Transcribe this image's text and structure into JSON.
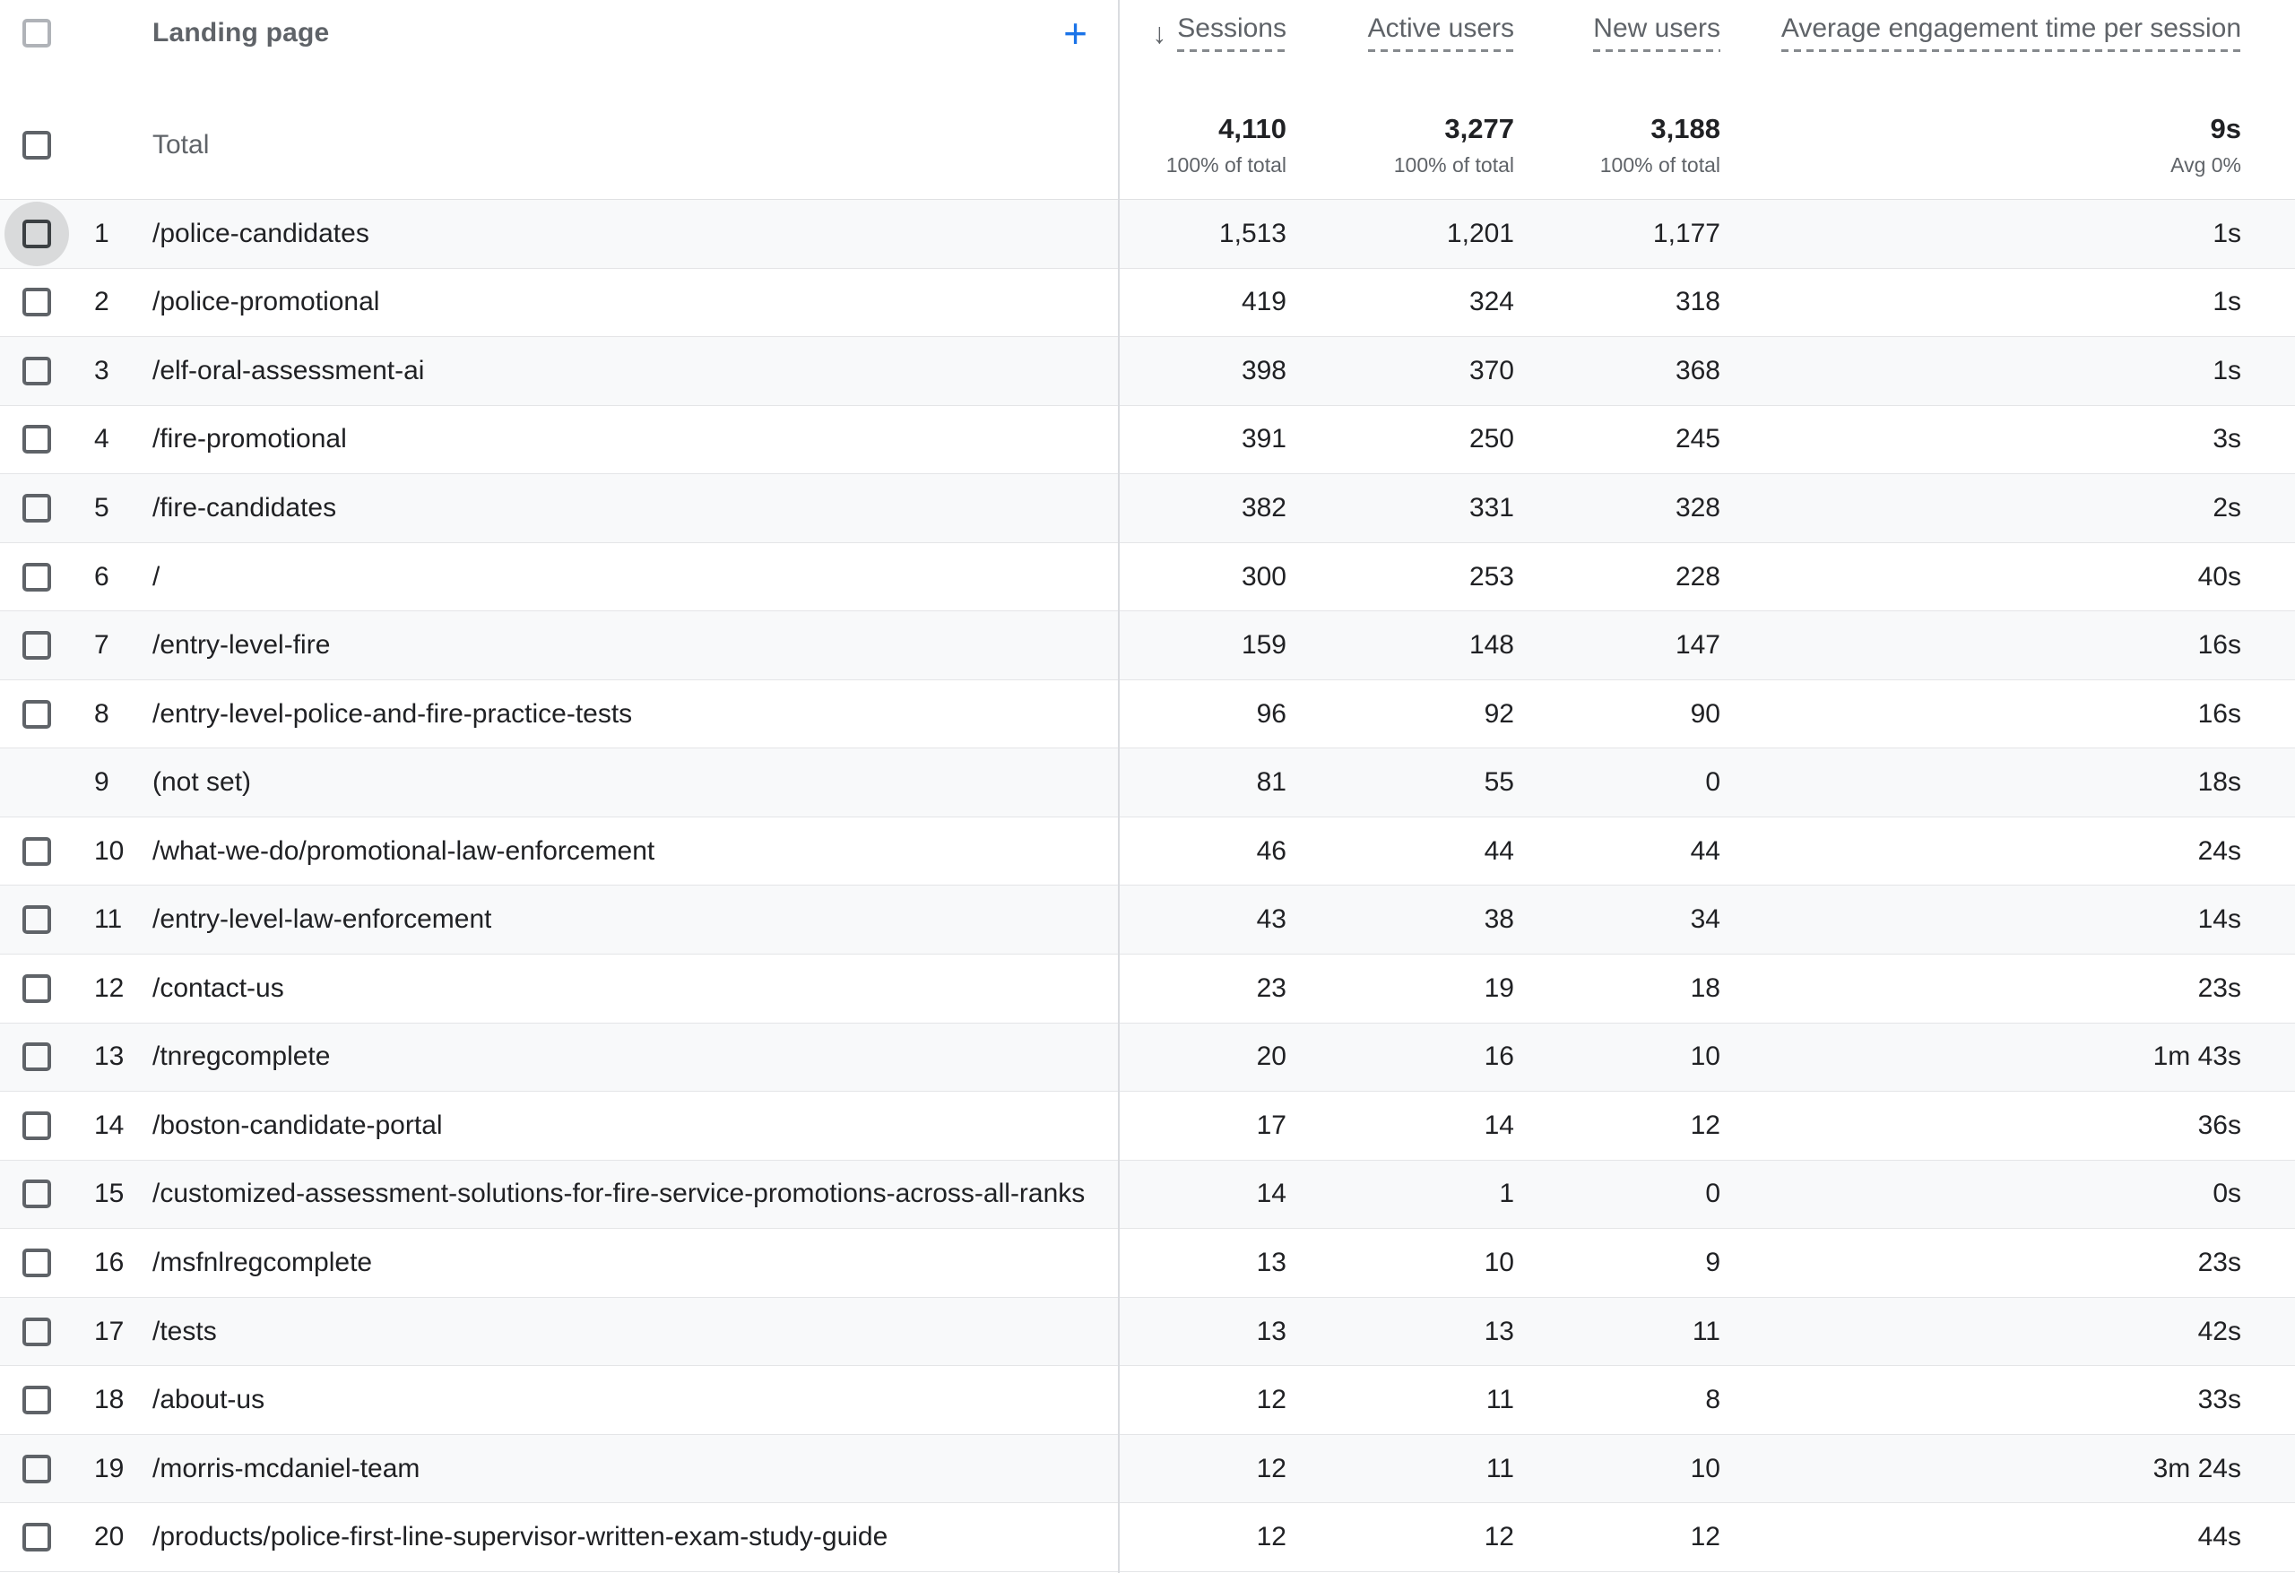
{
  "header": {
    "dimension_label": "Landing page",
    "add_icon": "+",
    "sort_icon": "↓",
    "metrics": [
      "Sessions",
      "Active users",
      "New users",
      "Average engagement time per session"
    ]
  },
  "totals": {
    "label": "Total",
    "sessions": {
      "value": "4,110",
      "sub": "100% of total"
    },
    "active_users": {
      "value": "3,277",
      "sub": "100% of total"
    },
    "new_users": {
      "value": "3,188",
      "sub": "100% of total"
    },
    "avg_engagement": {
      "value": "9s",
      "sub": "Avg 0%"
    }
  },
  "rows": [
    {
      "rank": "1",
      "page": "/police-candidates",
      "sessions": "1,513",
      "active_users": "1,201",
      "new_users": "1,177",
      "avg_engagement": "1s",
      "has_checkbox": true,
      "highlighted": true
    },
    {
      "rank": "2",
      "page": "/police-promotional",
      "sessions": "419",
      "active_users": "324",
      "new_users": "318",
      "avg_engagement": "1s",
      "has_checkbox": true,
      "highlighted": false
    },
    {
      "rank": "3",
      "page": "/elf-oral-assessment-ai",
      "sessions": "398",
      "active_users": "370",
      "new_users": "368",
      "avg_engagement": "1s",
      "has_checkbox": true,
      "highlighted": false
    },
    {
      "rank": "4",
      "page": "/fire-promotional",
      "sessions": "391",
      "active_users": "250",
      "new_users": "245",
      "avg_engagement": "3s",
      "has_checkbox": true,
      "highlighted": false
    },
    {
      "rank": "5",
      "page": "/fire-candidates",
      "sessions": "382",
      "active_users": "331",
      "new_users": "328",
      "avg_engagement": "2s",
      "has_checkbox": true,
      "highlighted": false
    },
    {
      "rank": "6",
      "page": "/",
      "sessions": "300",
      "active_users": "253",
      "new_users": "228",
      "avg_engagement": "40s",
      "has_checkbox": true,
      "highlighted": false
    },
    {
      "rank": "7",
      "page": "/entry-level-fire",
      "sessions": "159",
      "active_users": "148",
      "new_users": "147",
      "avg_engagement": "16s",
      "has_checkbox": true,
      "highlighted": false
    },
    {
      "rank": "8",
      "page": "/entry-level-police-and-fire-practice-tests",
      "sessions": "96",
      "active_users": "92",
      "new_users": "90",
      "avg_engagement": "16s",
      "has_checkbox": true,
      "highlighted": false
    },
    {
      "rank": "9",
      "page": "(not set)",
      "sessions": "81",
      "active_users": "55",
      "new_users": "0",
      "avg_engagement": "18s",
      "has_checkbox": false,
      "highlighted": false
    },
    {
      "rank": "10",
      "page": "/what-we-do/promotional-law-enforcement",
      "sessions": "46",
      "active_users": "44",
      "new_users": "44",
      "avg_engagement": "24s",
      "has_checkbox": true,
      "highlighted": false
    },
    {
      "rank": "11",
      "page": "/entry-level-law-enforcement",
      "sessions": "43",
      "active_users": "38",
      "new_users": "34",
      "avg_engagement": "14s",
      "has_checkbox": true,
      "highlighted": false
    },
    {
      "rank": "12",
      "page": "/contact-us",
      "sessions": "23",
      "active_users": "19",
      "new_users": "18",
      "avg_engagement": "23s",
      "has_checkbox": true,
      "highlighted": false
    },
    {
      "rank": "13",
      "page": "/tnregcomplete",
      "sessions": "20",
      "active_users": "16",
      "new_users": "10",
      "avg_engagement": "1m 43s",
      "has_checkbox": true,
      "highlighted": false
    },
    {
      "rank": "14",
      "page": "/boston-candidate-portal",
      "sessions": "17",
      "active_users": "14",
      "new_users": "12",
      "avg_engagement": "36s",
      "has_checkbox": true,
      "highlighted": false
    },
    {
      "rank": "15",
      "page": "/customized-assessment-solutions-for-fire-service-promotions-across-all-ranks",
      "sessions": "14",
      "active_users": "1",
      "new_users": "0",
      "avg_engagement": "0s",
      "has_checkbox": true,
      "highlighted": false
    },
    {
      "rank": "16",
      "page": "/msfnlregcomplete",
      "sessions": "13",
      "active_users": "10",
      "new_users": "9",
      "avg_engagement": "23s",
      "has_checkbox": true,
      "highlighted": false
    },
    {
      "rank": "17",
      "page": "/tests",
      "sessions": "13",
      "active_users": "13",
      "new_users": "11",
      "avg_engagement": "42s",
      "has_checkbox": true,
      "highlighted": false
    },
    {
      "rank": "18",
      "page": "/about-us",
      "sessions": "12",
      "active_users": "11",
      "new_users": "8",
      "avg_engagement": "33s",
      "has_checkbox": true,
      "highlighted": false
    },
    {
      "rank": "19",
      "page": "/morris-mcdaniel-team",
      "sessions": "12",
      "active_users": "11",
      "new_users": "10",
      "avg_engagement": "3m 24s",
      "has_checkbox": true,
      "highlighted": false
    },
    {
      "rank": "20",
      "page": "/products/police-first-line-supervisor-written-exam-study-guide",
      "sessions": "12",
      "active_users": "12",
      "new_users": "12",
      "avg_engagement": "44s",
      "has_checkbox": true,
      "highlighted": false
    }
  ],
  "colors": {
    "accent_blue": "#1a73e8",
    "header_text": "#5f6368",
    "row_text": "#202124",
    "banded_row_bg": "#f8f9fa",
    "row_border": "#e4e5e7",
    "column_divider": "#dadce0",
    "checkbox_ripple": "#d9dadb"
  }
}
